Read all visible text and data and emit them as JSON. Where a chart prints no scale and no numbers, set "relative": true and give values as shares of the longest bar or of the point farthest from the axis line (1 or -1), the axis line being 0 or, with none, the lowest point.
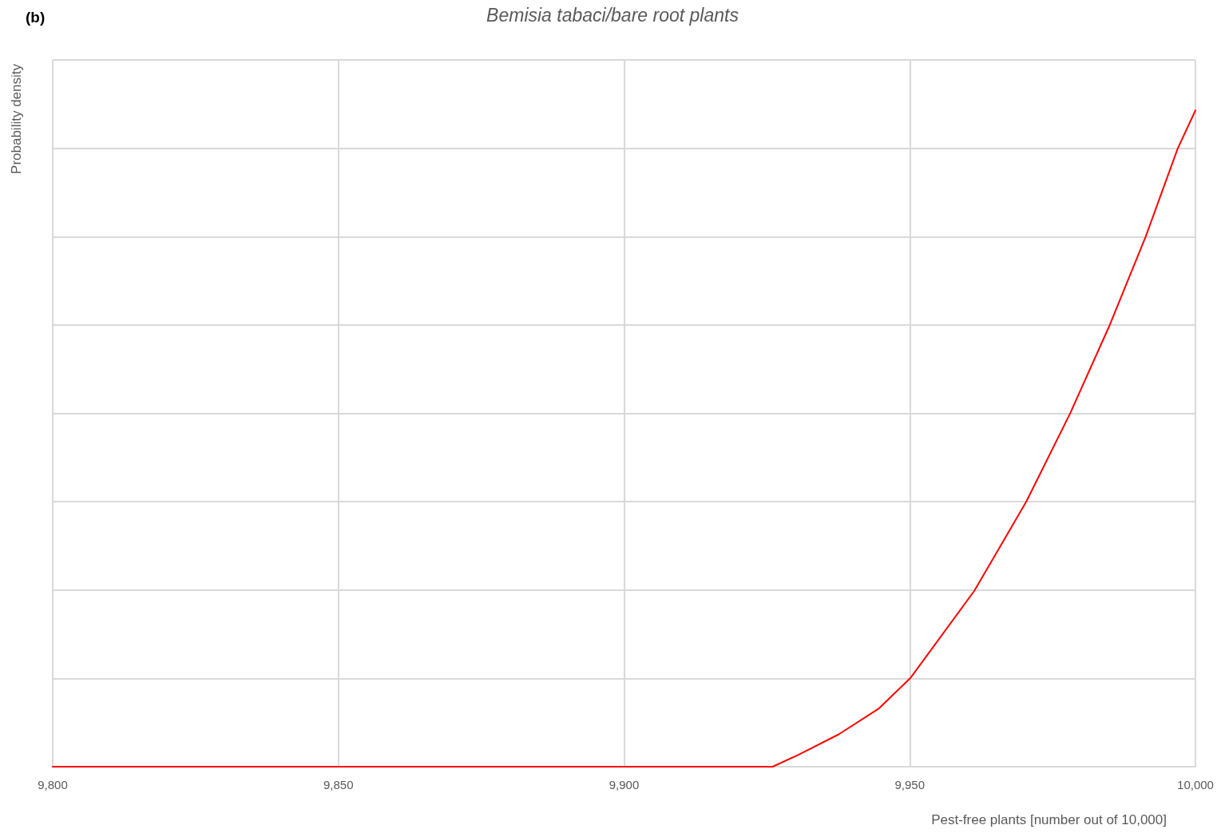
{
  "chart_data": {
    "type": "line",
    "title": "Bemisia tabaci/bare root plants",
    "xlabel": "Pest-free plants [number out of 10,000]",
    "ylabel": "Probability density",
    "annotations": [
      "(b)"
    ],
    "relative": true,
    "x": [
      9800,
      9926,
      9930.5,
      9937.5,
      9944.5,
      9950.1,
      9961.3,
      9970.4,
      9978.1,
      9985.0,
      9991.3,
      9996.9,
      10000
    ],
    "series": [
      {
        "color": "#ff0000",
        "values": [
          0,
          0,
          0.018,
          0.049,
          0.088,
          0.135,
          0.268,
          0.404,
          0.539,
          0.673,
          0.808,
          0.942,
          1
        ]
      }
    ],
    "xlim": [
      9800,
      10000
    ],
    "xticks": [
      {
        "value": 9800,
        "label": "9,800"
      },
      {
        "value": 9850,
        "label": "9,850"
      },
      {
        "value": 9900,
        "label": "9,900"
      },
      {
        "value": 9950,
        "label": "9,950"
      },
      {
        "value": 10000,
        "label": "10,000"
      }
    ],
    "grid": true,
    "marker": "none",
    "line_style": "solid"
  }
}
